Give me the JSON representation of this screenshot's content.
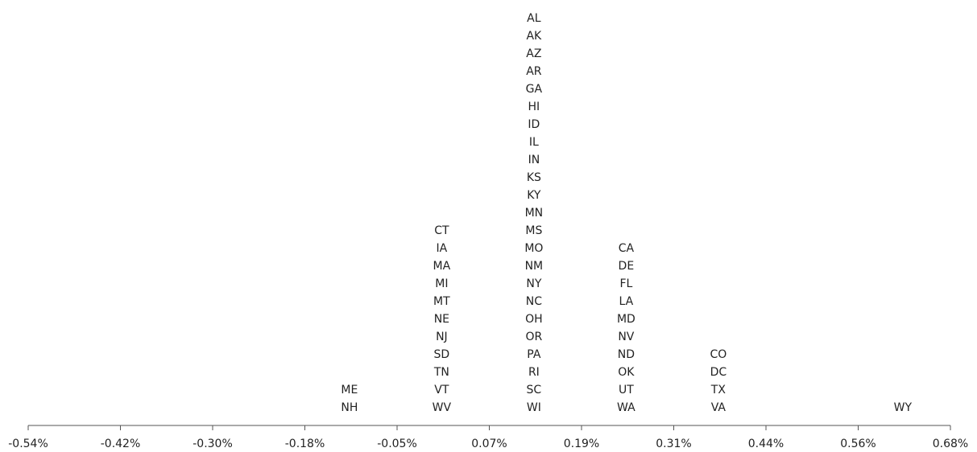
{
  "chart_data": {
    "type": "dot-stack",
    "title": "",
    "xlabel": "",
    "ylabel": "",
    "xlim": [
      -0.54,
      0.68
    ],
    "grid": false,
    "legend": "none",
    "x_ticks": [
      "-0.54%",
      "-0.42%",
      "-0.30%",
      "-0.18%",
      "-0.05%",
      "0.07%",
      "0.19%",
      "0.31%",
      "0.44%",
      "0.56%",
      "0.68%"
    ],
    "columns": [
      {
        "x": -0.115,
        "labels": [
          "ME",
          "NH"
        ]
      },
      {
        "x": 0.007,
        "labels": [
          "CT",
          "IA",
          "MA",
          "MI",
          "MT",
          "NE",
          "NJ",
          "SD",
          "TN",
          "VT",
          "WV"
        ]
      },
      {
        "x": 0.129,
        "labels": [
          "AL",
          "AK",
          "AZ",
          "AR",
          "GA",
          "HI",
          "ID",
          "IL",
          "IN",
          "KS",
          "KY",
          "MN",
          "MS",
          "MO",
          "NM",
          "NY",
          "NC",
          "OH",
          "OR",
          "PA",
          "RI",
          "SC",
          "WI"
        ]
      },
      {
        "x": 0.251,
        "labels": [
          "CA",
          "DE",
          "FL",
          "LA",
          "MD",
          "NV",
          "ND",
          "OK",
          "UT",
          "WA"
        ]
      },
      {
        "x": 0.373,
        "labels": [
          "CO",
          "DC",
          "TX",
          "VA"
        ]
      },
      {
        "x": 0.617,
        "labels": [
          "WY"
        ]
      }
    ]
  }
}
